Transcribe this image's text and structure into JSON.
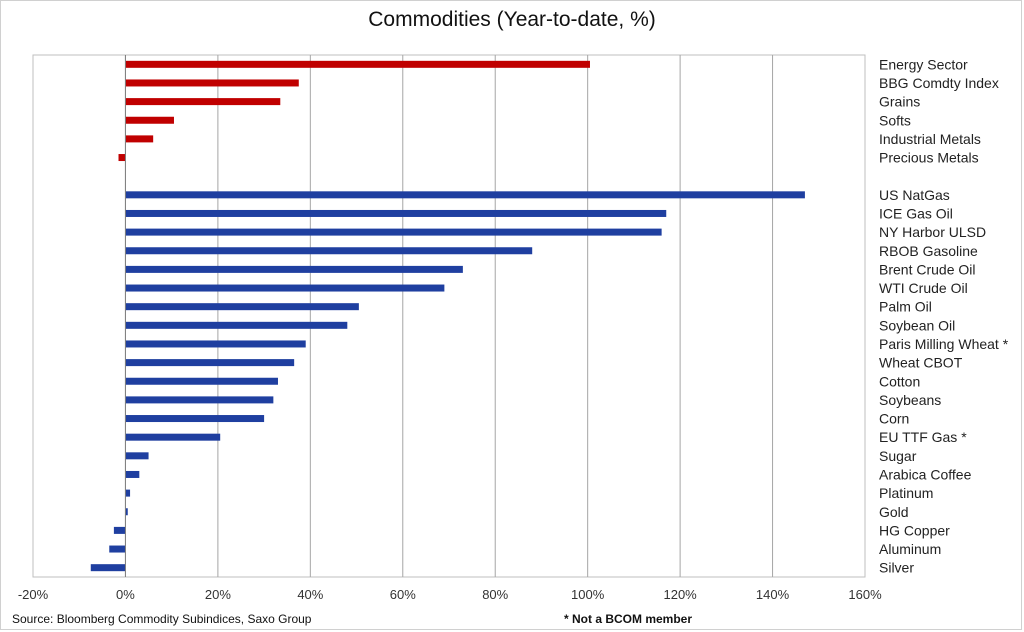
{
  "chart_data": {
    "type": "bar",
    "orientation": "horizontal",
    "title": "Commodities (Year-to-date, %)",
    "xlabel": "",
    "ylabel": "",
    "xlim": [
      -20,
      160
    ],
    "x_ticks": [
      "-20%",
      "0%",
      "20%",
      "40%",
      "60%",
      "80%",
      "100%",
      "120%",
      "140%",
      "160%"
    ],
    "grid": "vertical",
    "colors": {
      "sector": "#c00000",
      "commodity": "#1f3fa0",
      "grid": "#a6a6a6"
    },
    "groups": [
      {
        "name": "sectors",
        "color": "sector",
        "categories": [
          "Energy Sector",
          "BBG Comdty Index",
          "Grains",
          "Softs",
          "Industrial Metals",
          "Precious Metals"
        ],
        "values": [
          100.5,
          37.5,
          33.5,
          10.5,
          6,
          -1.5
        ]
      },
      {
        "name": "commodities",
        "color": "commodity",
        "categories": [
          "US NatGas",
          "ICE Gas Oil",
          "NY Harbor ULSD",
          "RBOB Gasoline",
          "Brent Crude Oil",
          "WTI Crude Oil",
          "Palm Oil",
          "Soybean Oil",
          "Paris Milling Wheat *",
          "Wheat CBOT",
          "Cotton",
          "Soybeans",
          "Corn",
          "EU TTF Gas *",
          "Sugar",
          "Arabica Coffee",
          "Platinum",
          "Gold",
          "HG Copper",
          "Aluminum",
          "Silver"
        ],
        "values": [
          147,
          117,
          116,
          88,
          73,
          69,
          50.5,
          48,
          39,
          36.5,
          33,
          32,
          30,
          20.5,
          5,
          3,
          1,
          0.5,
          -2.5,
          -3.5,
          -7.5
        ]
      }
    ]
  },
  "footer": {
    "source": "Source: Bloomberg Commodity Subindices, Saxo Group",
    "note": "* Not a BCOM member"
  }
}
